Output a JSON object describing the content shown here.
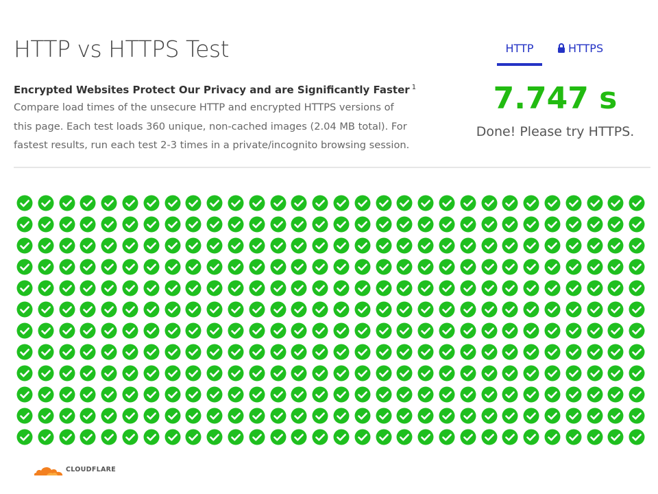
{
  "header": {
    "title": "HTTP vs HTTPS Test"
  },
  "intro": {
    "heading": "Encrypted Websites Protect Our Privacy and are Significantly Faster",
    "footnote_marker": "1",
    "lines": [
      "Compare load times of the unsecure HTTP and encrypted HTTPS versions of",
      "this page. Each test loads 360 unique, non-cached images (2.04 MB total). For",
      "fastest results, run each test 2-3 times in a private/incognito browsing session."
    ]
  },
  "tabs": {
    "http_label": "HTTP",
    "https_label": "HTTPS",
    "active": "HTTP"
  },
  "result": {
    "time": "7.747 s",
    "status": "Done! Please try HTTPS."
  },
  "image_grid": {
    "columns": 30,
    "rows": 12,
    "loaded_count": 360,
    "check_color": "#1fbf1f",
    "icon": "check-circle-icon"
  },
  "footer": {
    "logo_text": "CLOUDFLARE",
    "logo_icon": "cloud-icon",
    "logo_color": "#f38020"
  }
}
